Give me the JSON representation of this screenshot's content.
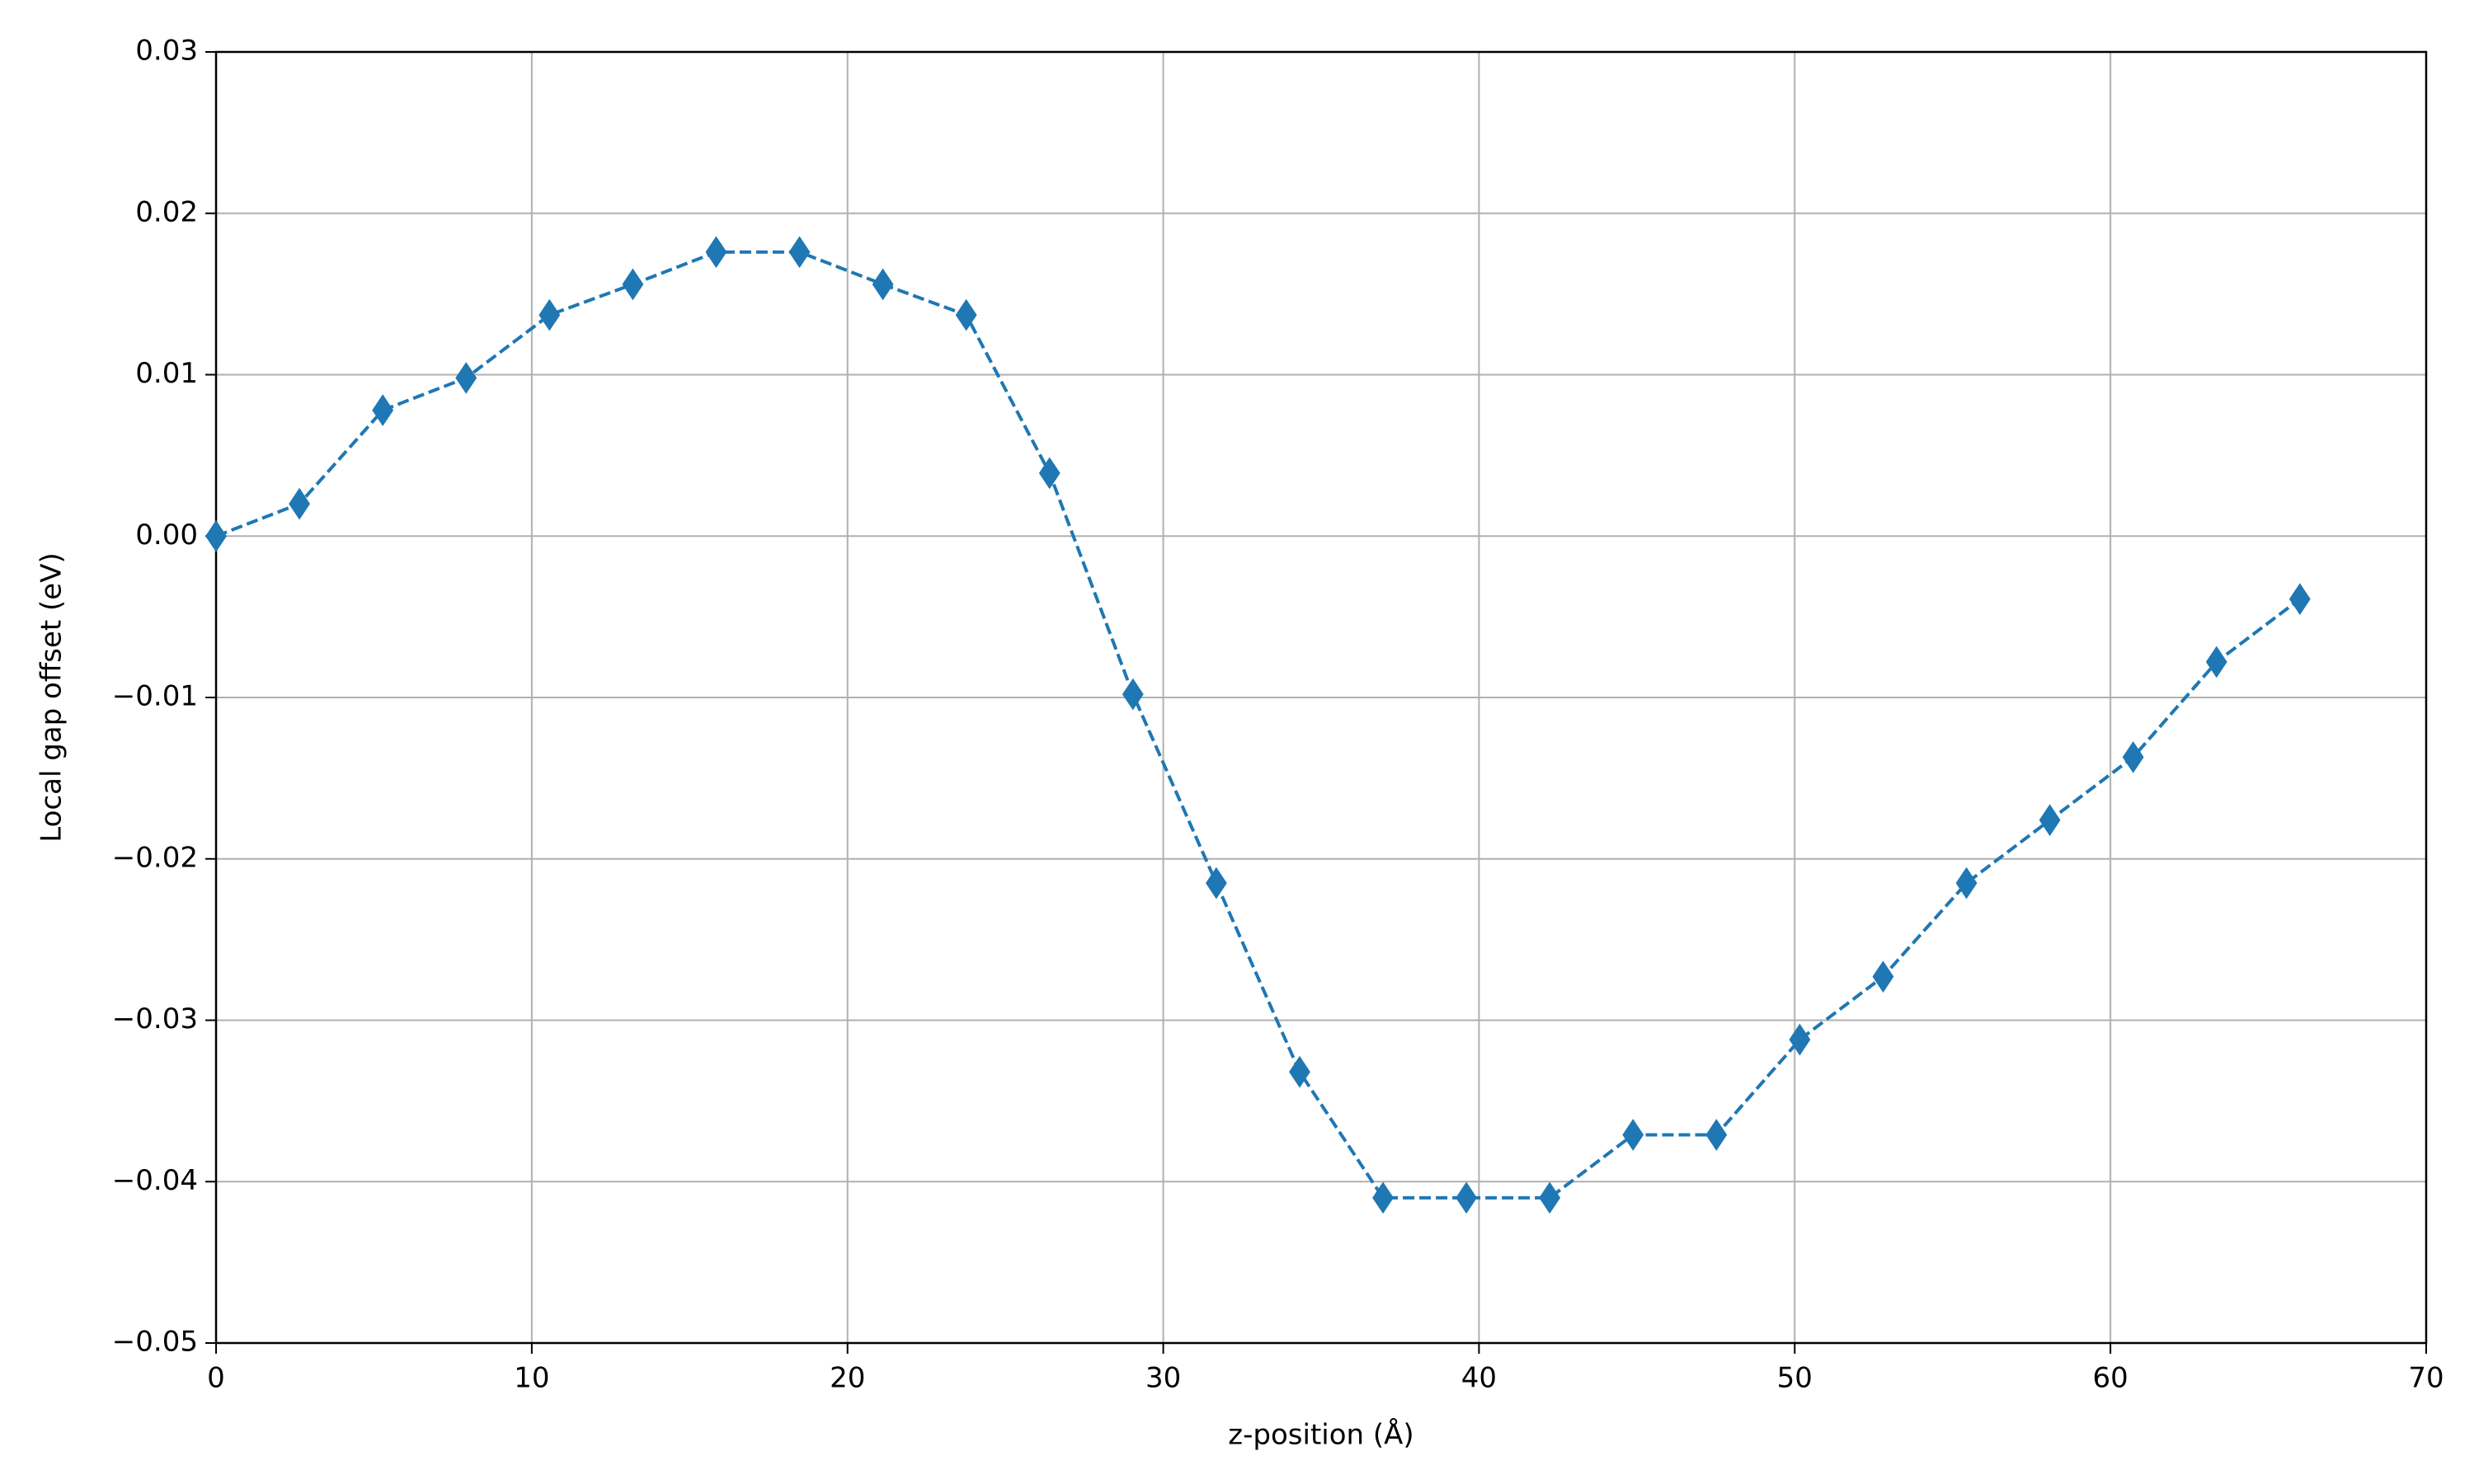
{
  "chart_data": {
    "type": "line",
    "xlabel": "z-position (Å)",
    "ylabel": "Local gap offset (eV)",
    "x": [
      0,
      2.64,
      5.28,
      7.92,
      10.56,
      13.2,
      15.84,
      18.48,
      21.12,
      23.76,
      26.4,
      29.04,
      31.68,
      34.32,
      36.96,
      39.6,
      42.24,
      44.88,
      47.52,
      50.16,
      52.8,
      55.44,
      58.08,
      60.72,
      63.36,
      66
    ],
    "values": [
      0,
      0.002,
      0.0078,
      0.0098,
      0.0137,
      0.0156,
      0.0176,
      0.0176,
      0.0156,
      0.0137,
      0.0039,
      -0.0098,
      -0.0215,
      -0.0332,
      -0.041,
      -0.041,
      -0.041,
      -0.0371,
      -0.0371,
      -0.0312,
      -0.0273,
      -0.0215,
      -0.0176,
      -0.0137,
      -0.0078,
      -0.0039
    ],
    "color": "#1f77b4",
    "marker": "thin-diamond",
    "linestyle": "dashed",
    "xlim": [
      0,
      70
    ],
    "xticks": [
      0,
      10,
      20,
      30,
      40,
      50,
      60,
      70
    ],
    "ylim": [
      -0.05,
      0.03
    ],
    "yticks": [
      {
        "value": -0.05,
        "label": "−0.05"
      },
      {
        "value": -0.04,
        "label": "−0.04"
      },
      {
        "value": -0.03,
        "label": "−0.03"
      },
      {
        "value": -0.02,
        "label": "−0.02"
      },
      {
        "value": -0.01,
        "label": "−0.01"
      },
      {
        "value": 0,
        "label": "0.00"
      },
      {
        "value": 0.01,
        "label": "0.01"
      },
      {
        "value": 0.02,
        "label": "0.02"
      },
      {
        "value": 0.03,
        "label": "0.03"
      }
    ],
    "grid": true
  }
}
